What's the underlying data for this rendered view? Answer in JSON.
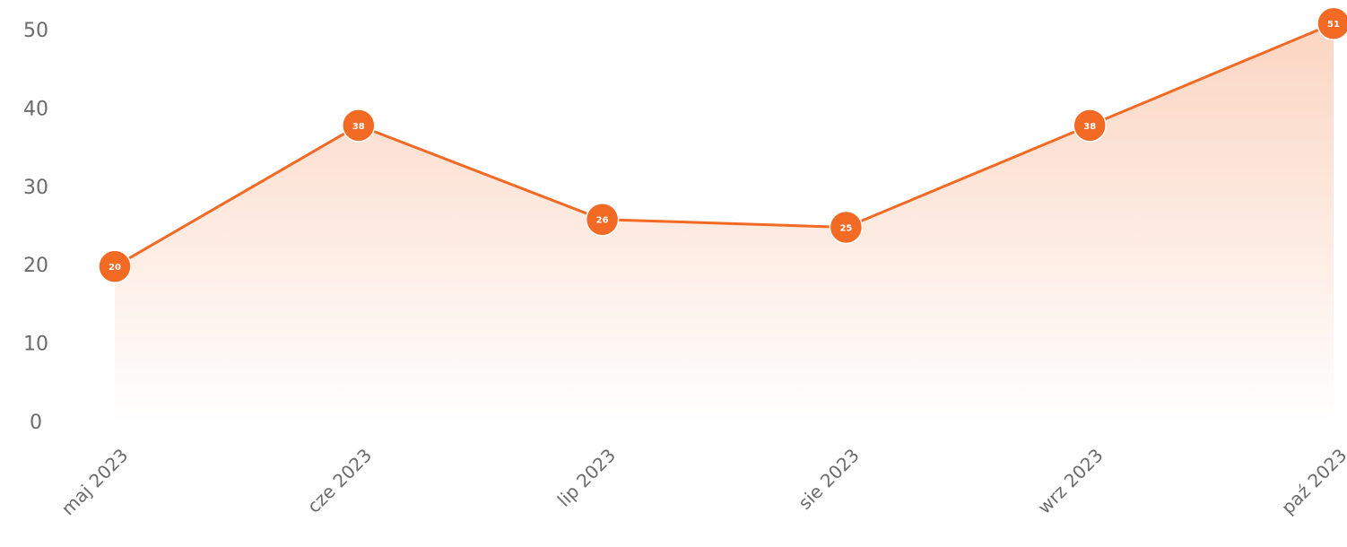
{
  "chart_data": {
    "type": "area",
    "categories": [
      "maj 2023",
      "cze 2023",
      "lip 2023",
      "sie 2023",
      "wrz 2023",
      "paź 2023"
    ],
    "values": [
      20,
      38,
      26,
      25,
      38,
      51
    ],
    "color": "#f26a24",
    "ylim": [
      0,
      54
    ],
    "yticks": [
      0,
      10,
      20,
      30,
      40,
      50
    ]
  }
}
